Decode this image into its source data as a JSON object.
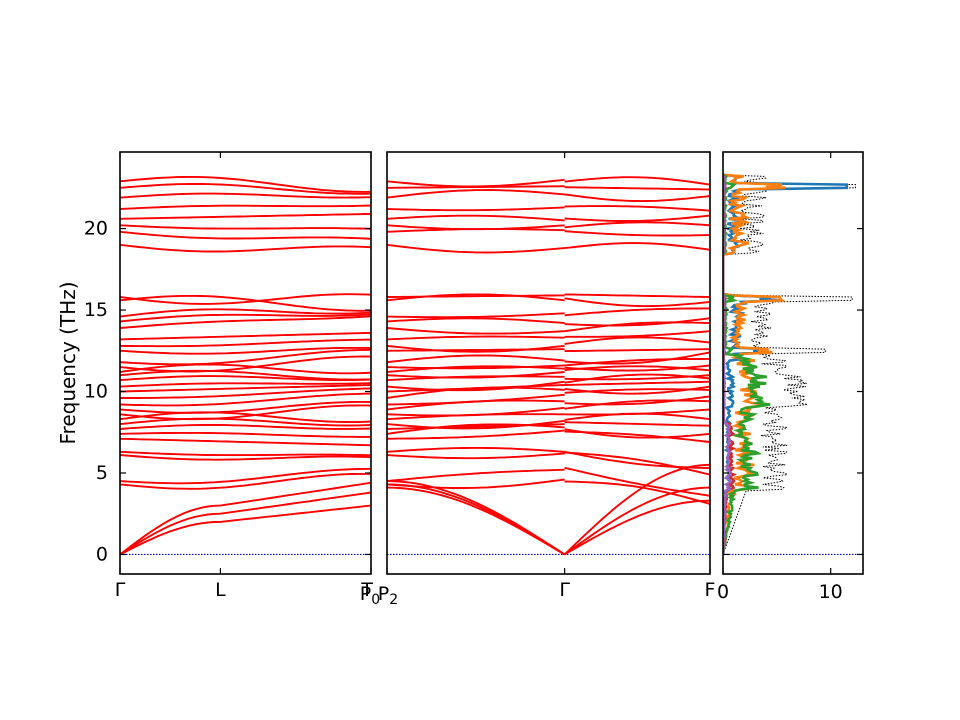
{
  "chart_data": {
    "type": "line",
    "ylabel": "Frequency (THz)",
    "ylim": [
      -1.2,
      24.7
    ],
    "y_ticks": [
      "0",
      "5",
      "10",
      "15",
      "20"
    ],
    "y_tick_values": [
      0,
      5,
      10,
      15,
      20
    ],
    "band_color": "#ff0000",
    "zero_line_color": "#0000ff",
    "panels": [
      {
        "kind": "band-structure",
        "q_labels": [
          "Γ",
          "L",
          "T"
        ],
        "q_positions": [
          0,
          0.4,
          1.0
        ],
        "end_label": "P0",
        "bands": {
          "acoustic_end": [
            3.0,
            3.8,
            4.4
          ],
          "acoustic_mid": [
            2.0,
            2.5,
            3.0
          ],
          "optic_start": [
            4.3,
            4.5,
            6.1,
            6.3,
            7.1,
            7.4,
            7.7,
            8.0,
            8.3,
            8.6,
            8.9,
            9.2,
            9.6,
            10.0,
            10.3,
            10.7,
            11.0,
            11.2,
            11.5,
            11.8,
            12.5,
            12.8,
            13.2,
            13.9,
            14.3,
            14.6,
            15.6,
            15.8,
            19.0,
            19.8,
            20.2,
            20.6,
            21.2,
            21.9,
            22.5,
            22.9
          ],
          "optic_end": [
            4.6,
            5.0,
            5.8,
            6.0,
            6.7,
            7.3,
            7.9,
            8.2,
            8.5,
            8.8,
            9.1,
            9.7,
            10.1,
            10.4,
            10.6,
            10.9,
            11.0,
            11.5,
            11.8,
            12.3,
            12.5,
            13.1,
            13.6,
            14.7,
            14.9,
            15.1,
            15.3,
            15.6,
            18.6,
            19.2,
            19.9,
            20.9,
            21.5,
            22.1,
            22.4,
            22.6
          ]
        }
      },
      {
        "kind": "band-structure",
        "q_labels": [
          "P2",
          "Γ",
          "F"
        ],
        "q_positions": [
          0,
          0.55,
          1.0
        ],
        "bands": {
          "optic_start": [
            4.3,
            4.5,
            6.1,
            6.3,
            7.1,
            7.4,
            7.7,
            8.0,
            8.3,
            8.6,
            8.9,
            9.2,
            9.6,
            10.0,
            10.3,
            10.7,
            11.0,
            11.2,
            11.5,
            11.8,
            12.5,
            12.8,
            13.2,
            13.9,
            14.3,
            14.6,
            15.6,
            15.8,
            19.0,
            19.8,
            20.2,
            20.6,
            21.2,
            21.9,
            22.5,
            22.9
          ],
          "optic_mid": [
            4.6,
            5.2,
            6.2,
            6.3,
            7.6,
            7.8,
            8.0,
            8.2,
            8.6,
            9.0,
            9.4,
            9.8,
            10.1,
            10.4,
            10.6,
            10.9,
            11.2,
            11.4,
            11.6,
            11.9,
            12.6,
            12.8,
            13.3,
            13.7,
            14.2,
            14.8,
            15.6,
            15.9,
            18.8,
            19.9,
            20.2,
            20.5,
            21.3,
            22.1,
            22.6,
            23.0
          ],
          "optic_end": [
            3.1,
            3.6,
            4.9,
            5.3,
            6.9,
            7.4,
            7.9,
            8.3,
            8.9,
            9.4,
            9.7,
            10.1,
            10.3,
            10.6,
            10.8,
            11.0,
            11.3,
            11.6,
            12.0,
            12.4,
            12.6,
            13.0,
            13.7,
            14.2,
            14.5,
            15.1,
            15.5,
            15.8,
            18.7,
            19.6,
            20.2,
            20.8,
            21.1,
            22.0,
            22.4,
            22.7
          ],
          "acoustic_end": [
            5.5,
            4.1,
            3.3
          ]
        }
      },
      {
        "kind": "dos",
        "x_ticks": [
          "0",
          "10"
        ],
        "x_tick_values": [
          0,
          10
        ],
        "xlim": [
          0,
          13
        ],
        "series": [
          {
            "color": "#000000",
            "style": "dotted"
          },
          {
            "color": "#1f77b4"
          },
          {
            "color": "#ff7f0e"
          },
          {
            "color": "#2ca02c"
          },
          {
            "color": "#d62728"
          },
          {
            "color": "#9467bd"
          }
        ]
      }
    ]
  }
}
